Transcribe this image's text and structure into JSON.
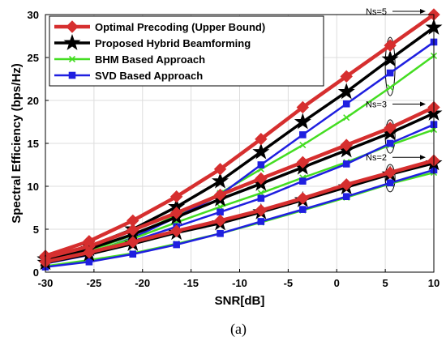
{
  "chart_data": {
    "type": "line",
    "x": [
      -30,
      -25.5,
      -21,
      -16.5,
      -12,
      -7.8,
      -3.5,
      1,
      5.5,
      10
    ],
    "xlim": [
      -30,
      10
    ],
    "ylim": [
      0,
      30
    ],
    "xticks": [
      -30,
      -25,
      -20,
      -15,
      -10,
      -5,
      0,
      5,
      10
    ],
    "yticks": [
      0,
      5,
      10,
      15,
      20,
      25,
      30
    ],
    "xlabel": "SNR[dB]",
    "ylabel": "Spectral Efficiency (bps/Hz)",
    "caption_label": "(a)",
    "grid": true,
    "legend_position": "top-left",
    "legend": [
      {
        "name": "Optimal Precoding (Upper Bound)",
        "color": "#d62f2f",
        "marker": "diamond"
      },
      {
        "name": "Proposed Hybrid Beamforming",
        "color": "#000000",
        "marker": "star"
      },
      {
        "name": "BHM Based Approach",
        "color": "#44dd22",
        "marker": "x"
      },
      {
        "name": "SVD Based Approach",
        "color": "#1f1fe0",
        "marker": "square"
      }
    ],
    "groups": [
      {
        "label": "Ns=5",
        "series": [
          {
            "legend_index": 0,
            "values": [
              1.9,
              3.6,
              6.0,
              8.8,
              12.0,
              15.5,
              19.2,
              22.8,
              26.4,
              30.0
            ]
          },
          {
            "legend_index": 1,
            "values": [
              1.5,
              3.0,
              5.0,
              7.6,
              10.6,
              14.0,
              17.5,
              21.0,
              24.8,
              28.5
            ]
          },
          {
            "legend_index": 2,
            "values": [
              1.2,
              2.5,
              4.3,
              6.6,
              9.2,
              12.0,
              14.8,
              18.0,
              21.5,
              25.2
            ]
          },
          {
            "legend_index": 3,
            "values": [
              1.0,
              2.2,
              4.0,
              6.4,
              9.0,
              12.5,
              16.0,
              19.6,
              23.2,
              26.8
            ]
          }
        ]
      },
      {
        "label": "Ns=3",
        "series": [
          {
            "legend_index": 0,
            "values": [
              1.7,
              3.0,
              4.9,
              6.9,
              9.0,
              10.9,
              12.8,
              14.8,
              16.8,
              19.2
            ]
          },
          {
            "legend_index": 1,
            "values": [
              1.5,
              2.7,
              4.4,
              6.4,
              8.5,
              10.3,
              12.2,
              14.2,
              16.2,
              18.5
            ]
          },
          {
            "legend_index": 2,
            "values": [
              1.2,
              2.3,
              3.9,
              5.8,
              7.6,
              9.2,
              11.0,
              12.8,
              14.8,
              16.6
            ]
          },
          {
            "legend_index": 3,
            "values": [
              1.0,
              2.0,
              3.6,
              5.3,
              7.0,
              8.6,
              10.6,
              12.6,
              15.0,
              17.2
            ]
          }
        ]
      },
      {
        "label": "Ns=2",
        "series": [
          {
            "legend_index": 0,
            "values": [
              1.2,
              2.3,
              3.5,
              4.8,
              6.0,
              7.2,
              8.6,
              10.2,
              11.6,
              13.0
            ]
          },
          {
            "legend_index": 1,
            "values": [
              1.1,
              2.1,
              3.3,
              4.6,
              5.7,
              7.0,
              8.4,
              9.9,
              11.4,
              12.7
            ]
          },
          {
            "legend_index": 2,
            "values": [
              0.7,
              1.4,
              2.2,
              3.3,
              4.5,
              5.8,
              7.2,
              8.7,
              10.3,
              11.6
            ]
          },
          {
            "legend_index": 3,
            "values": [
              0.6,
              1.2,
              2.1,
              3.2,
              4.5,
              5.9,
              7.3,
              8.8,
              10.4,
              11.9
            ]
          }
        ]
      }
    ]
  }
}
